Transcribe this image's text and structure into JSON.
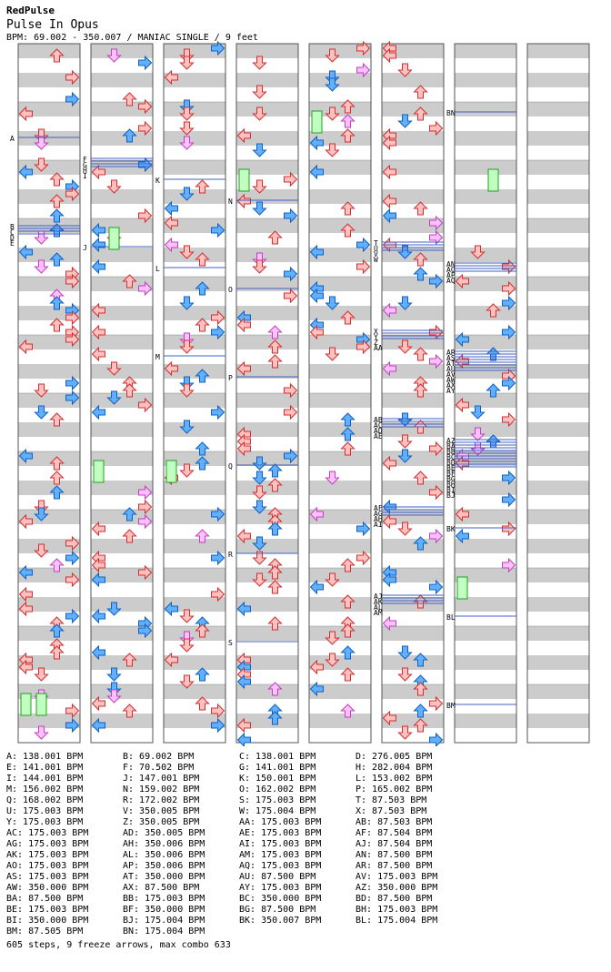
{
  "header": {
    "artist": "RedPulse",
    "title": "Pulse In Opus",
    "info": "BPM: 69.002 - 350.007 / MANIAC SINGLE / 9 feet"
  },
  "colors": {
    "stripe": "#cccccc",
    "border": "#555555",
    "arrow_red_fill": "#ffc0c0",
    "arrow_red_stroke": "#d03030",
    "arrow_blue_fill": "#60b0ff",
    "arrow_blue_stroke": "#1060c0",
    "arrow_pink_fill": "#ffc0ff",
    "arrow_pink_stroke": "#c040c0",
    "freeze_fill": "#c0ffc0",
    "freeze_stroke": "#20a020",
    "bpm_line": "#4060c0"
  },
  "chart_markers": [
    {
      "col": 0,
      "labels": [
        "A"
      ]
    },
    {
      "col": 0,
      "labels": [
        "B",
        "C",
        "D",
        "E"
      ]
    },
    {
      "col": 1,
      "labels": [
        "F",
        "G",
        "H",
        "I"
      ]
    },
    {
      "col": 1,
      "labels": [
        "J"
      ]
    },
    {
      "col": 2,
      "labels": [
        "K"
      ]
    },
    {
      "col": 2,
      "labels": [
        "L"
      ]
    },
    {
      "col": 2,
      "labels": [
        "M"
      ]
    },
    {
      "col": 3,
      "labels": [
        "N"
      ]
    },
    {
      "col": 3,
      "labels": [
        "O"
      ]
    },
    {
      "col": 3,
      "labels": [
        "P"
      ]
    },
    {
      "col": 3,
      "labels": [
        "Q"
      ]
    },
    {
      "col": 3,
      "labels": [
        "R"
      ]
    },
    {
      "col": 3,
      "labels": [
        "S"
      ]
    },
    {
      "col": 5,
      "labels": [
        "T",
        "U",
        "V",
        "W"
      ]
    },
    {
      "col": 5,
      "labels": [
        "X",
        "Y",
        "Z",
        "AA"
      ]
    },
    {
      "col": 5,
      "labels": [
        "AB",
        "AC",
        "AD",
        "AE"
      ]
    },
    {
      "col": 5,
      "labels": [
        "AF",
        "AG",
        "AH",
        "AI"
      ]
    },
    {
      "col": 5,
      "labels": [
        "AJ",
        "AK",
        "AL",
        "AM"
      ]
    },
    {
      "col": 6,
      "labels": [
        "AN",
        "AO",
        "AP",
        "AQ"
      ]
    },
    {
      "col": 6,
      "labels": [
        "AR",
        "AS",
        "AT",
        "AU",
        "AV",
        "AW",
        "AX",
        "AY"
      ]
    },
    {
      "col": 6,
      "labels": [
        "AZ",
        "BA",
        "BB",
        "BC",
        "BD",
        "BE",
        "BF",
        "BG",
        "BH",
        "BI",
        "BJ"
      ]
    },
    {
      "col": 6,
      "labels": [
        "BK"
      ]
    },
    {
      "col": 6,
      "labels": [
        "BL"
      ]
    },
    {
      "col": 6,
      "labels": [
        "BM"
      ]
    },
    {
      "col": 6,
      "labels": [
        "BN"
      ]
    }
  ],
  "bpm_list": [
    "A: 138.001 BPM",
    "B: 69.002 BPM",
    "C: 138.001 BPM",
    "D: 276.005 BPM",
    "E: 141.001 BPM",
    "F: 70.502 BPM",
    "G: 141.001 BPM",
    "H: 282.004 BPM",
    "I: 144.001 BPM",
    "J: 147.001 BPM",
    "K: 150.001 BPM",
    "L: 153.002 BPM",
    "M: 156.002 BPM",
    "N: 159.002 BPM",
    "O: 162.002 BPM",
    "P: 165.002 BPM",
    "Q: 168.002 BPM",
    "R: 172.002 BPM",
    "S: 175.003 BPM",
    "T: 87.503 BPM",
    "U: 175.003 BPM",
    "V: 350.005 BPM",
    "W: 175.004 BPM",
    "X: 87.503 BPM",
    "Y: 175.003 BPM",
    "Z: 350.005 BPM",
    "AA: 175.003 BPM",
    "AB: 87.503 BPM",
    "AC: 175.003 BPM",
    "AD: 350.005 BPM",
    "AE: 175.003 BPM",
    "AF: 87.504 BPM",
    "AG: 175.003 BPM",
    "AH: 350.006 BPM",
    "AI: 175.003 BPM",
    "AJ: 87.504 BPM",
    "AK: 175.003 BPM",
    "AL: 350.006 BPM",
    "AM: 175.003 BPM",
    "AN: 87.500 BPM",
    "AO: 175.003 BPM",
    "AP: 350.006 BPM",
    "AQ: 175.003 BPM",
    "AR: 87.500 BPM",
    "AS: 175.003 BPM",
    "AT: 350.000 BPM",
    "AU: 87.500 BPM",
    "AV: 175.003 BPM",
    "AW: 350.000 BPM",
    "AX: 87.500 BPM",
    "AY: 175.003 BPM",
    "AZ: 350.000 BPM",
    "BA: 87.500 BPM",
    "BB: 175.003 BPM",
    "BC: 350.000 BPM",
    "BD: 87.500 BPM",
    "BE: 175.003 BPM",
    "BF: 350.000 BPM",
    "BG: 87.500 BPM",
    "BH: 175.003 BPM",
    "BI: 350.000 BPM",
    "BJ: 175.004 BPM",
    "BK: 350.007 BPM",
    "BL: 175.004 BPM",
    "BM: 87.505 BPM",
    "BN: 175.004 BPM"
  ],
  "summary": "605 steps, 9 freeze arrows, max combo 633"
}
